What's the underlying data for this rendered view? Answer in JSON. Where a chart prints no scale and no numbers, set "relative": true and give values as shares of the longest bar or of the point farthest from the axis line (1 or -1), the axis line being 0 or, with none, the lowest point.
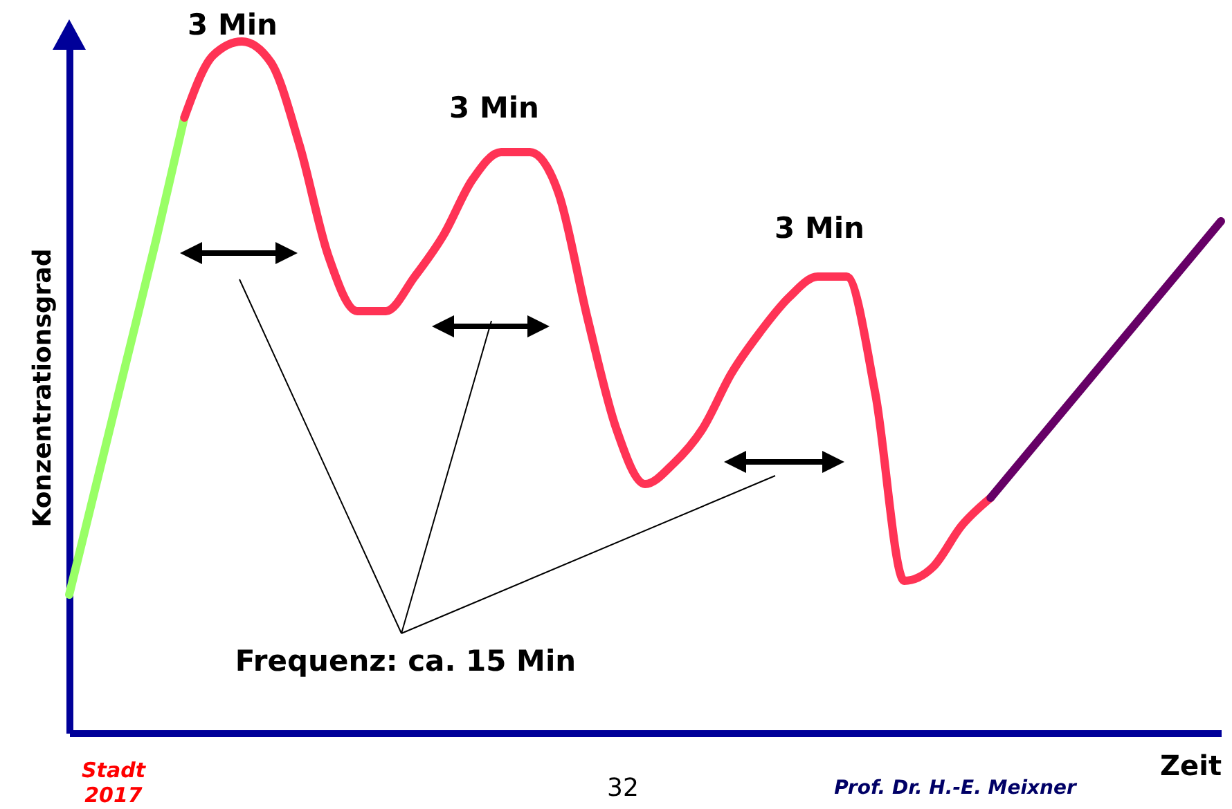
{
  "chart_data": {
    "type": "line",
    "relative": true,
    "xlabel": "Zeit",
    "ylabel": "Konzentrationsgrad",
    "categories": [
      null,
      null,
      null,
      null,
      null,
      null,
      null,
      null,
      null,
      null,
      null,
      null,
      null,
      null,
      null,
      null,
      null,
      null,
      null,
      null,
      null,
      null,
      null,
      null,
      null,
      null,
      null,
      null,
      null,
      null,
      null,
      null,
      null,
      null,
      null,
      null,
      null,
      null,
      null,
      null,
      null
    ],
    "series": [
      {
        "color": "#99ff66",
        "values": [
          0.2,
          0.37,
          0.54,
          0.71,
          0.89,
          null,
          null,
          null,
          null,
          null,
          null,
          null,
          null,
          null,
          null,
          null,
          null,
          null,
          null,
          null,
          null,
          null,
          null,
          null,
          null,
          null,
          null,
          null,
          null,
          null,
          null,
          null,
          null,
          null,
          null,
          null,
          null,
          null,
          null,
          null,
          null
        ]
      },
      {
        "color": "#ff3355",
        "values": [
          null,
          null,
          null,
          null,
          0.89,
          0.98,
          1,
          0.97,
          0.85,
          0.69,
          0.61,
          0.61,
          0.66,
          0.72,
          0.8,
          0.84,
          0.84,
          0.78,
          0.6,
          0.44,
          0.36,
          0.39,
          0.44,
          0.52,
          0.58,
          0.63,
          0.66,
          0.66,
          0.49,
          0.22,
          0.24,
          0.3,
          0.34,
          null,
          null,
          null,
          null,
          null,
          null,
          null,
          null
        ]
      },
      {
        "color": "#660066",
        "values": [
          null,
          null,
          null,
          null,
          null,
          null,
          null,
          null,
          null,
          null,
          null,
          null,
          null,
          null,
          null,
          null,
          null,
          null,
          null,
          null,
          null,
          null,
          null,
          null,
          null,
          null,
          null,
          null,
          null,
          null,
          null,
          null,
          0.34,
          0.39,
          0.44,
          0.49,
          0.54,
          0.59,
          0.64,
          0.69,
          0.74
        ]
      }
    ],
    "annotations": [
      "3 Min",
      "3 Min",
      "3 Min",
      "Frequenz: ca. 15 Min",
      "32",
      "Stadt 2017",
      "Prof. Dr. H.-E. Meixner"
    ]
  }
}
